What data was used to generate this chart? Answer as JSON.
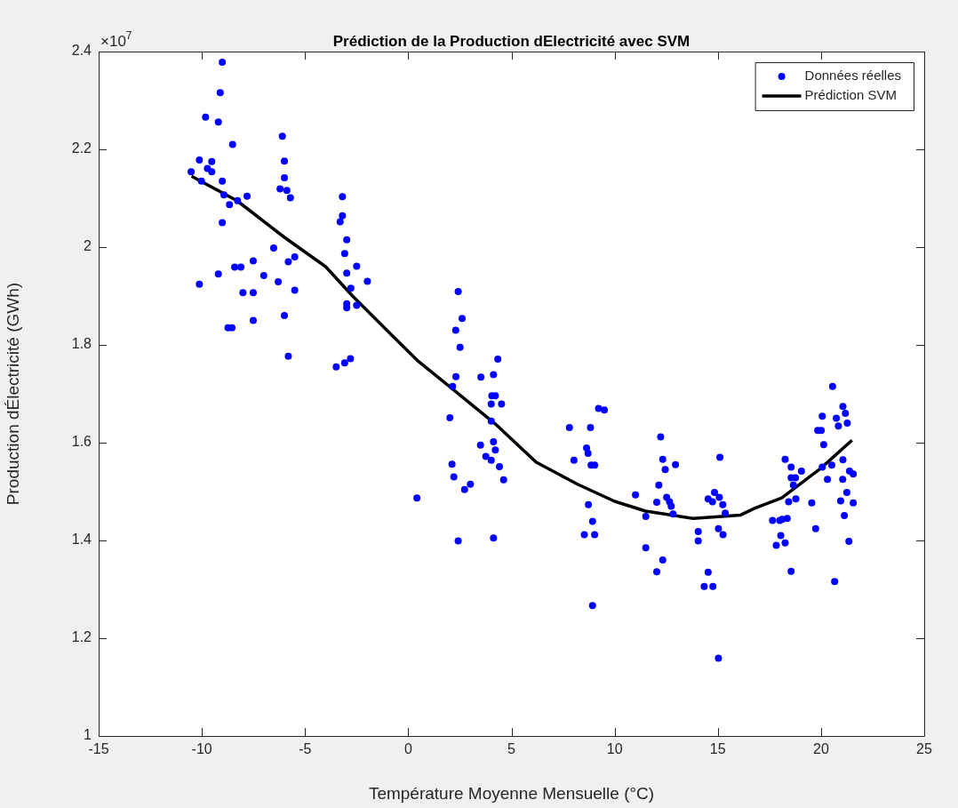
{
  "chart_data": {
    "type": "scatter",
    "title": "Prédiction de la Production dElectricité avec SVM",
    "xlabel": "Température Moyenne Mensuelle (°C)",
    "ylabel": "Production dÉlectricité (GWh)",
    "annotations": [
      "×10$^{7}$"
    ],
    "xlim": [
      -15,
      25
    ],
    "xticks": [
      -15,
      -10,
      -5,
      0,
      5,
      10,
      15,
      20,
      25
    ],
    "ylim": [
      1,
      2.4
    ],
    "yticks": [
      1,
      1.2,
      1.4,
      1.6,
      1.8,
      2,
      2.2,
      2.4
    ],
    "grid": false,
    "legend": "top right",
    "series": [
      {
        "name": "Données réelles",
        "type": "scatter",
        "marker": "circle",
        "color": "#0000ff",
        "x": [
          -9.01,
          -9.11,
          -9.82,
          -9.2,
          -8.51,
          -10.12,
          -9.52,
          -9.73,
          -9.52,
          -10.52,
          -10.02,
          -9.01,
          -8.93,
          -8.66,
          -8.27,
          -7.81,
          -9.01,
          -6.1,
          -6.0,
          -6.0,
          -6.21,
          -5.88,
          -5.71,
          -3.19,
          -3.19,
          -3.3,
          -2.98,
          -3.08,
          -2.5,
          -2.98,
          -1.98,
          -2.78,
          -2.98,
          -2.98,
          -2.5,
          -6.52,
          -5.81,
          -5.5,
          -7.51,
          -8.41,
          -8.11,
          -9.2,
          -7.0,
          -10.12,
          -6.3,
          -5.5,
          -8.01,
          -7.51,
          -6.0,
          -7.51,
          -8.73,
          -8.54,
          -5.81,
          -3.49,
          -3.08,
          -2.8,
          2.42,
          2.61,
          2.3,
          2.51,
          4.34,
          4.13,
          3.52,
          2.31,
          2.15,
          4.05,
          4.22,
          4.02,
          4.52,
          2.02,
          4.02,
          4.13,
          3.5,
          4.22,
          3.76,
          4.02,
          4.42,
          4.62,
          2.12,
          2.21,
          3.01,
          2.73,
          0.42,
          2.42,
          4.13,
          9.22,
          9.5,
          7.81,
          8.83,
          8.64,
          8.71,
          8.03,
          8.86,
          9.03,
          8.73,
          8.93,
          8.53,
          9.03,
          8.93,
          11.01,
          11.51,
          11.51,
          12.04,
          12.33,
          12.23,
          12.33,
          12.45,
          12.95,
          12.14,
          12.04,
          12.52,
          12.66,
          12.74,
          12.83,
          15.1,
          14.53,
          14.74,
          14.84,
          15.07,
          15.24,
          15.36,
          14.05,
          14.05,
          15.03,
          15.25,
          14.53,
          14.34,
          14.76,
          15.03,
          17.65,
          18.0,
          18.12,
          18.36,
          18.05,
          17.83,
          18.26,
          18.55,
          18.26,
          18.55,
          19.05,
          18.55,
          18.76,
          18.66,
          18.78,
          18.43,
          19.55,
          19.74,
          20.06,
          19.84,
          20.01,
          20.13,
          20.06,
          20.52,
          20.31,
          20.56,
          21.06,
          21.18,
          20.74,
          20.84,
          21.27,
          21.06,
          21.38,
          21.56,
          21.05,
          21.25,
          20.95,
          21.56,
          21.13,
          21.35,
          20.66
        ],
        "values": [
          2.378,
          2.316,
          2.266,
          2.256,
          2.21,
          2.178,
          2.175,
          2.161,
          2.154,
          2.154,
          2.135,
          2.135,
          2.107,
          2.087,
          2.095,
          2.104,
          2.05,
          2.227,
          2.176,
          2.142,
          2.119,
          2.116,
          2.101,
          2.103,
          2.064,
          2.052,
          2.015,
          1.987,
          1.961,
          1.947,
          1.93,
          1.916,
          1.884,
          1.876,
          1.881,
          1.998,
          1.97,
          1.98,
          1.972,
          1.959,
          1.959,
          1.945,
          1.942,
          1.924,
          1.929,
          1.912,
          1.907,
          1.907,
          1.86,
          1.85,
          1.835,
          1.835,
          1.777,
          1.755,
          1.763,
          1.772,
          1.909,
          1.854,
          1.83,
          1.795,
          1.771,
          1.739,
          1.734,
          1.735,
          1.715,
          1.696,
          1.696,
          1.679,
          1.679,
          1.651,
          1.644,
          1.602,
          1.595,
          1.585,
          1.572,
          1.564,
          1.551,
          1.524,
          1.556,
          1.53,
          1.515,
          1.504,
          1.487,
          1.399,
          1.405,
          1.67,
          1.667,
          1.631,
          1.631,
          1.589,
          1.578,
          1.564,
          1.554,
          1.554,
          1.473,
          1.439,
          1.412,
          1.412,
          1.267,
          1.493,
          1.449,
          1.385,
          1.336,
          1.36,
          1.612,
          1.566,
          1.545,
          1.555,
          1.513,
          1.478,
          1.488,
          1.479,
          1.47,
          1.454,
          1.57,
          1.485,
          1.479,
          1.498,
          1.488,
          1.473,
          1.456,
          1.418,
          1.399,
          1.424,
          1.412,
          1.335,
          1.306,
          1.306,
          1.159,
          1.441,
          1.441,
          1.443,
          1.445,
          1.41,
          1.39,
          1.395,
          1.337,
          1.566,
          1.55,
          1.542,
          1.528,
          1.528,
          1.513,
          1.485,
          1.479,
          1.477,
          1.424,
          1.654,
          1.625,
          1.625,
          1.596,
          1.55,
          1.554,
          1.525,
          1.715,
          1.674,
          1.66,
          1.65,
          1.634,
          1.64,
          1.565,
          1.542,
          1.536,
          1.525,
          1.498,
          1.481,
          1.477,
          1.451,
          1.398,
          1.316
        ]
      },
      {
        "name": "Prédiction SVM",
        "type": "line",
        "marker": "none",
        "line_style": "solid",
        "color": "#000000",
        "x": [
          -10.5,
          -8.3,
          -6,
          -4,
          -2.7,
          -0.8,
          0.5,
          2.2,
          4.2,
          6.2,
          8.2,
          10,
          11.5,
          13.8,
          16.1,
          16.8,
          18.1,
          20,
          21.5
        ],
        "values": [
          2.145,
          2.095,
          2.02,
          1.96,
          1.9,
          1.82,
          1.766,
          1.708,
          1.639,
          1.56,
          1.515,
          1.48,
          1.46,
          1.445,
          1.452,
          1.466,
          1.487,
          1.548,
          1.605
        ]
      }
    ]
  }
}
